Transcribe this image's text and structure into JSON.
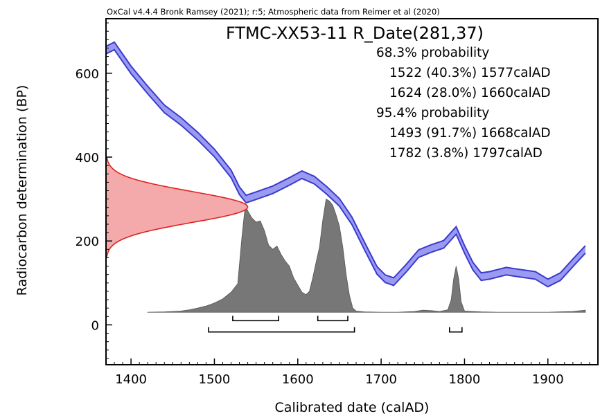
{
  "chart_data": {
    "type": "line",
    "header": "OxCal v4.4.4 Bronk Ramsey (2021); r:5; Atmospheric data from Reimer et al (2020)",
    "title": "FTMC-XX53-11 R_Date(281,37)",
    "xlabel": "Calibrated date (calAD)",
    "ylabel": "Radiocarbon determination (BP)",
    "xlim": [
      1370,
      1960
    ],
    "ylim": [
      -95,
      730
    ],
    "xticks": [
      1400,
      1500,
      1600,
      1700,
      1800,
      1900
    ],
    "yticks": [
      0,
      200,
      400,
      600
    ],
    "summary_lines": [
      "68.3% probability",
      "1522 (40.3%) 1577calAD",
      "1624 (28.0%) 1660calAD",
      "95.4% probability",
      "1493 (91.7%) 1668calAD",
      "1782 (3.8%) 1797calAD"
    ],
    "calibration_curve": {
      "color": "#3a3ad0",
      "fill": "#9a9af0",
      "x": [
        1370,
        1380,
        1400,
        1420,
        1440,
        1460,
        1480,
        1500,
        1520,
        1530,
        1538,
        1550,
        1570,
        1590,
        1605,
        1620,
        1635,
        1650,
        1665,
        1680,
        1695,
        1705,
        1715,
        1730,
        1745,
        1760,
        1775,
        1790,
        1800,
        1810,
        1820,
        1830,
        1850,
        1870,
        1885,
        1900,
        1915,
        1930,
        1945
      ],
      "y": [
        655,
        665,
        608,
        560,
        515,
        485,
        450,
        410,
        360,
        320,
        300,
        308,
        322,
        342,
        358,
        345,
        320,
        292,
        248,
        188,
        130,
        110,
        103,
        135,
        170,
        182,
        192,
        225,
        180,
        140,
        115,
        118,
        128,
        122,
        118,
        100,
        115,
        148,
        180
      ],
      "half_width": 9
    },
    "measurement": {
      "mean_bp": 281,
      "sigma": 37,
      "color": "#e02020",
      "fill": "#f4aaaa",
      "peak_date": 1540
    },
    "posterior": {
      "color": "#777777",
      "baseline_y": 30,
      "x": [
        1420,
        1440,
        1460,
        1470,
        1480,
        1490,
        1500,
        1510,
        1520,
        1528,
        1533,
        1537,
        1541,
        1545,
        1550,
        1555,
        1560,
        1565,
        1570,
        1575,
        1580,
        1585,
        1590,
        1595,
        1600,
        1605,
        1610,
        1614,
        1618,
        1622,
        1626,
        1630,
        1634,
        1638,
        1642,
        1646,
        1650,
        1654,
        1658,
        1662,
        1666,
        1670,
        1680,
        1700,
        1720,
        1740,
        1750,
        1760,
        1770,
        1780,
        1784,
        1787,
        1790,
        1793,
        1796,
        1800,
        1820,
        1840,
        1860,
        1900,
        1930,
        1945
      ],
      "y": [
        30,
        31,
        33,
        36,
        40,
        45,
        52,
        62,
        78,
        98,
        210,
        285,
        268,
        255,
        245,
        248,
        225,
        190,
        180,
        188,
        168,
        152,
        140,
        112,
        95,
        78,
        72,
        80,
        112,
        150,
        185,
        250,
        300,
        295,
        285,
        262,
        235,
        185,
        120,
        70,
        40,
        33,
        31,
        30,
        30,
        32,
        35,
        34,
        32,
        36,
        60,
        110,
        140,
        110,
        55,
        33,
        31,
        30,
        30,
        30,
        32,
        35
      ]
    },
    "ranges": {
      "one_sigma": [
        [
          1522,
          1577
        ],
        [
          1624,
          1660
        ]
      ],
      "two_sigma": [
        [
          1493,
          1668
        ],
        [
          1782,
          1797
        ]
      ],
      "one_sigma_y": 10,
      "two_sigma_y": -17
    }
  }
}
